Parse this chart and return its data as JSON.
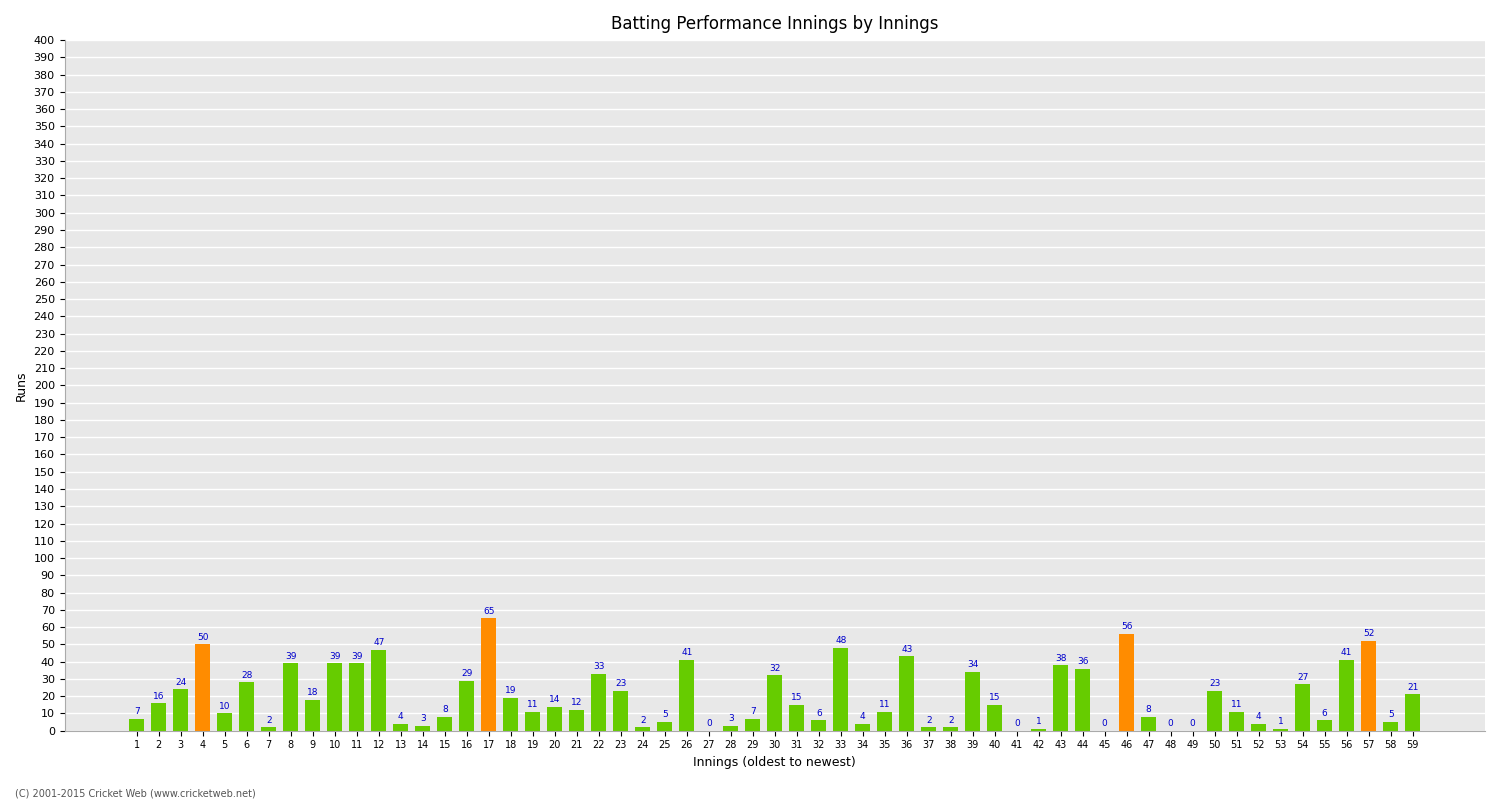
{
  "innings": [
    1,
    2,
    3,
    4,
    5,
    6,
    7,
    8,
    9,
    10,
    11,
    12,
    13,
    14,
    15,
    16,
    17,
    18,
    19,
    20,
    21,
    22,
    23,
    24,
    25,
    26,
    27,
    28,
    29,
    30,
    31,
    32,
    33,
    34,
    35,
    36,
    37,
    38,
    39,
    40,
    41,
    42,
    43,
    44,
    45,
    46,
    47,
    48,
    49,
    50,
    51,
    52,
    53,
    54,
    55,
    56,
    57,
    58,
    59
  ],
  "scores": [
    7,
    16,
    24,
    50,
    10,
    28,
    2,
    39,
    18,
    39,
    39,
    47,
    4,
    3,
    8,
    29,
    65,
    19,
    11,
    14,
    12,
    33,
    23,
    2,
    5,
    41,
    0,
    3,
    7,
    32,
    15,
    6,
    48,
    4,
    11,
    43,
    2,
    2,
    34,
    15,
    0,
    1,
    38,
    36,
    0,
    56,
    8,
    0,
    0,
    23,
    11,
    4,
    1,
    27,
    6,
    41,
    52,
    5,
    21
  ],
  "orange_indices": [
    3,
    16,
    45,
    56
  ],
  "green_color": "#66cc00",
  "orange_color": "#ff8c00",
  "title": "Batting Performance Innings by Innings",
  "ylabel": "Runs",
  "xlabel": "Innings (oldest to newest)",
  "ylim": [
    0,
    400
  ],
  "yticks": [
    0,
    10,
    20,
    30,
    40,
    50,
    60,
    70,
    80,
    90,
    100,
    110,
    120,
    130,
    140,
    150,
    160,
    170,
    180,
    190,
    200,
    210,
    220,
    230,
    240,
    250,
    260,
    270,
    280,
    290,
    300,
    310,
    320,
    330,
    340,
    350,
    360,
    370,
    380,
    390,
    400
  ],
  "bg_color": "#e8e8e8",
  "grid_color": "#ffffff",
  "footer": "(C) 2001-2015 Cricket Web (www.cricketweb.net)"
}
